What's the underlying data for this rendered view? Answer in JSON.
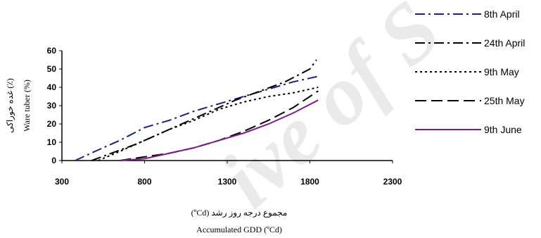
{
  "chart_data": {
    "type": "line",
    "xlabel_fa": "مجموع درجه روز رشد (ºCd)",
    "xlabel_en": "Accumulated GDD (ºCd)",
    "ylabel_fa": "غده خوراکی (٪)",
    "ylabel_en": "Ware tuber (%)",
    "xlim": [
      300,
      2300
    ],
    "ylim": [
      0,
      60
    ],
    "xticks": [
      "300",
      "800",
      "1300",
      "1800",
      "2300"
    ],
    "yticks": [
      "0",
      "10",
      "20",
      "30",
      "40",
      "50",
      "60"
    ],
    "legend_position": "right",
    "series": [
      {
        "name": "8th April",
        "color": "#1a237e",
        "dash": "dashdot",
        "x": [
          380,
          500,
          650,
          800,
          950,
          1100,
          1250,
          1400,
          1550,
          1700,
          1850
        ],
        "y": [
          0,
          5,
          11,
          18,
          22,
          27,
          31,
          35,
          39,
          43,
          46
        ]
      },
      {
        "name": "24th April",
        "color": "#000000",
        "dash": "dashdot",
        "x": [
          480,
          600,
          750,
          900,
          1050,
          1200,
          1350,
          1500,
          1650,
          1800,
          1840
        ],
        "y": [
          0,
          4,
          9,
          15,
          21,
          27,
          33,
          38,
          43,
          50,
          55
        ]
      },
      {
        "name": "9th May",
        "color": "#000000",
        "dash": "dotted",
        "x": [
          520,
          650,
          800,
          950,
          1100,
          1250,
          1400,
          1550,
          1700,
          1850
        ],
        "y": [
          0,
          5,
          11,
          17,
          22,
          28,
          32,
          35,
          37,
          40
        ]
      },
      {
        "name": "25th May",
        "color": "#000000",
        "dash": "longdash",
        "x": [
          650,
          800,
          950,
          1100,
          1250,
          1400,
          1550,
          1700,
          1850
        ],
        "y": [
          0,
          2,
          4,
          7,
          11,
          16,
          22,
          29,
          38
        ]
      },
      {
        "name": "9th June",
        "color": "#7b1f8a",
        "dash": "solid",
        "x": [
          650,
          800,
          950,
          1100,
          1250,
          1400,
          1550,
          1700,
          1850
        ],
        "y": [
          0,
          1,
          4,
          7,
          11,
          15,
          20,
          26,
          33
        ]
      }
    ]
  }
}
